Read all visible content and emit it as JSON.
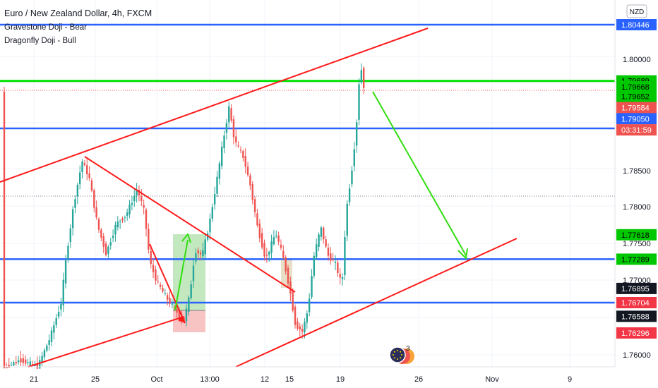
{
  "header": {
    "title": "Euro / New Zealand Dollar, 4h, FXCM",
    "indicator1": "Gravestone Doji - Bear",
    "indicator2": "Dragonfly Doji - Bull",
    "currency_badge": "NZD"
  },
  "chart_data": {
    "type": "candlestick",
    "y_ticks": [
      "1.80000",
      "1.78500",
      "1.78000",
      "1.77500",
      "1.77000",
      "1.76000"
    ],
    "x_ticks": [
      "21",
      "25",
      "Oct",
      "13:00",
      "12",
      "15",
      "19",
      "26",
      "Nov",
      "9"
    ],
    "ylim": [
      1.7585,
      1.8055
    ],
    "horizontal_lines": [
      {
        "price": 1.80446,
        "color": "#2962ff"
      },
      {
        "price": 1.79689,
        "color": "#00e000"
      },
      {
        "price": 1.7905,
        "color": "#2962ff"
      },
      {
        "price": 1.77289,
        "color": "#2962ff"
      },
      {
        "price": 1.76704,
        "color": "#2962ff"
      }
    ],
    "price_labels": [
      {
        "text": "1.80446",
        "price": 1.80446,
        "bg": "#2962ff",
        "fg": "#ffffff"
      },
      {
        "text": "1.79689",
        "price": 1.79689,
        "bg": "#00c800",
        "fg": "#000000"
      },
      {
        "text": "1.79668",
        "price": 1.7961,
        "bg": "#00c800",
        "fg": "#000000"
      },
      {
        "text": "1.79652",
        "price": 1.7948,
        "bg": "#00c800",
        "fg": "#000000"
      },
      {
        "text": "1.79584",
        "price": 1.7933,
        "bg": "#ef5350",
        "fg": "#ffffff"
      },
      {
        "text": "1.79050",
        "price": 1.7918,
        "bg": "#2962ff",
        "fg": "#ffffff"
      },
      {
        "text": "03:31:59",
        "price": 1.7903,
        "bg": "#ef5350",
        "fg": "#ffffff"
      },
      {
        "text": "1.77618",
        "price": 1.77618,
        "bg": "#00c800",
        "fg": "#000000"
      },
      {
        "text": "1.77289",
        "price": 1.77289,
        "bg": "#00c800",
        "fg": "#000000"
      },
      {
        "text": "1.76895",
        "price": 1.76895,
        "bg": "#131722",
        "fg": "#ffffff"
      },
      {
        "text": "1.76704",
        "price": 1.76704,
        "bg": "#f23645",
        "fg": "#ffffff"
      },
      {
        "text": "1.76588",
        "price": 1.7652,
        "bg": "#131722",
        "fg": "#ffffff"
      },
      {
        "text": "1.76296",
        "price": 1.76296,
        "bg": "#f23645",
        "fg": "#ffffff"
      }
    ],
    "events_badge": "3",
    "colors": {
      "up": "#26a69a",
      "down": "#ef5350",
      "trend": "#ff1a1a",
      "arrow": "#33dd11"
    }
  }
}
